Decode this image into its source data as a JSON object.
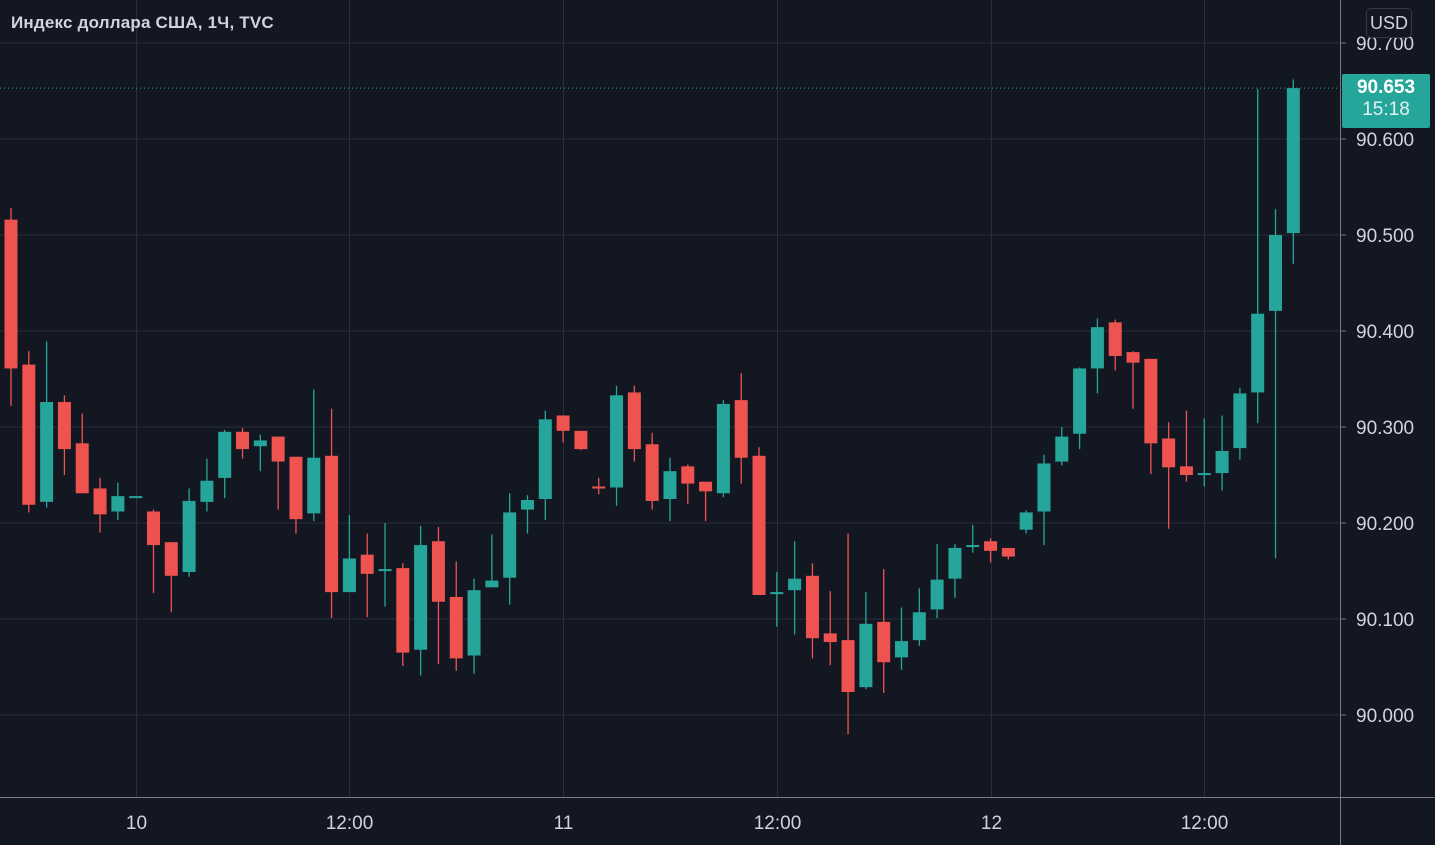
{
  "header": {
    "title": "Индекс доллара США, 1Ч, TVC",
    "currency": "USD"
  },
  "last": {
    "price": "90.653",
    "countdown": "15:18"
  },
  "colors": {
    "up": "#26a69a",
    "down": "#ef5350",
    "background": "#131722",
    "grid": "#2a2e39"
  },
  "chart_data": {
    "type": "candlestick",
    "title": "Индекс доллара США, 1Ч, TVC",
    "ylabel": "USD",
    "ylim": [
      89.92,
      90.73
    ],
    "y_ticks": [
      "90.700",
      "90.600",
      "90.500",
      "90.400",
      "90.300",
      "90.200",
      "90.100",
      "90.000"
    ],
    "x_ticks": [
      {
        "label": "10",
        "bar": 7
      },
      {
        "label": "12:00",
        "bar": 19
      },
      {
        "label": "11",
        "bar": 31
      },
      {
        "label": "12:00",
        "bar": 43
      },
      {
        "label": "12",
        "bar": 55
      },
      {
        "label": "12:00",
        "bar": 67
      }
    ],
    "last_price": 90.653,
    "ohlc": [
      [
        90.516,
        90.528,
        90.322,
        90.361
      ],
      [
        90.365,
        90.379,
        90.211,
        90.219
      ],
      [
        90.222,
        90.389,
        90.216,
        90.326
      ],
      [
        90.326,
        90.333,
        90.25,
        90.277
      ],
      [
        90.283,
        90.314,
        90.231,
        90.231
      ],
      [
        90.236,
        90.247,
        90.19,
        90.209
      ],
      [
        90.212,
        90.242,
        90.203,
        90.228
      ],
      [
        90.228,
        90.228,
        90.228,
        90.228
      ],
      [
        90.212,
        90.214,
        90.127,
        90.177
      ],
      [
        90.18,
        90.18,
        90.107,
        90.145
      ],
      [
        90.149,
        90.236,
        90.144,
        90.223
      ],
      [
        90.222,
        90.267,
        90.212,
        90.244
      ],
      [
        90.247,
        90.297,
        90.226,
        90.295
      ],
      [
        90.295,
        90.299,
        90.267,
        90.277
      ],
      [
        90.28,
        90.292,
        90.254,
        90.286
      ],
      [
        90.29,
        90.29,
        90.214,
        90.264
      ],
      [
        90.269,
        90.269,
        90.189,
        90.204
      ],
      [
        90.21,
        90.339,
        90.202,
        90.268
      ],
      [
        90.27,
        90.319,
        90.101,
        90.128
      ],
      [
        90.128,
        90.208,
        90.128,
        90.163
      ],
      [
        90.167,
        90.189,
        90.102,
        90.147
      ],
      [
        90.151,
        90.2,
        90.113,
        90.152
      ],
      [
        90.153,
        90.158,
        90.051,
        90.065
      ],
      [
        90.068,
        90.197,
        90.041,
        90.177
      ],
      [
        90.181,
        90.196,
        90.053,
        90.118
      ],
      [
        90.123,
        90.16,
        90.046,
        90.059
      ],
      [
        90.062,
        90.142,
        90.043,
        90.13
      ],
      [
        90.133,
        90.188,
        90.133,
        90.14
      ],
      [
        90.143,
        90.231,
        90.115,
        90.211
      ],
      [
        90.214,
        90.229,
        90.189,
        90.224
      ],
      [
        90.225,
        90.317,
        90.203,
        90.308
      ],
      [
        90.312,
        90.312,
        90.284,
        90.296
      ],
      [
        90.296,
        90.296,
        90.276,
        90.277
      ],
      [
        90.238,
        90.247,
        90.23,
        90.237
      ],
      [
        90.237,
        90.343,
        90.218,
        90.333
      ],
      [
        90.336,
        90.343,
        90.264,
        90.277
      ],
      [
        90.282,
        90.294,
        90.214,
        90.223
      ],
      [
        90.225,
        90.268,
        90.202,
        90.254
      ],
      [
        90.259,
        90.261,
        90.22,
        90.241
      ],
      [
        90.243,
        90.243,
        90.202,
        90.233
      ],
      [
        90.231,
        90.328,
        90.227,
        90.324
      ],
      [
        90.328,
        90.356,
        90.241,
        90.268
      ],
      [
        90.27,
        90.279,
        90.125,
        90.125
      ],
      [
        90.128,
        90.149,
        90.092,
        90.128
      ],
      [
        90.13,
        90.181,
        90.084,
        90.142
      ],
      [
        90.145,
        90.158,
        90.059,
        90.08
      ],
      [
        90.085,
        90.129,
        90.052,
        90.076
      ],
      [
        90.078,
        90.189,
        89.98,
        90.024
      ],
      [
        90.029,
        90.128,
        90.027,
        90.095
      ],
      [
        90.097,
        90.152,
        90.023,
        90.055
      ],
      [
        90.06,
        90.112,
        90.047,
        90.077
      ],
      [
        90.078,
        90.132,
        90.072,
        90.107
      ],
      [
        90.11,
        90.178,
        90.101,
        90.141
      ],
      [
        90.142,
        90.178,
        90.122,
        90.174
      ],
      [
        90.177,
        90.198,
        90.169,
        90.177
      ],
      [
        90.181,
        90.184,
        90.159,
        90.171
      ],
      [
        90.174,
        90.174,
        90.162,
        90.165
      ],
      [
        90.193,
        90.213,
        90.189,
        90.211
      ],
      [
        90.212,
        90.271,
        90.177,
        90.262
      ],
      [
        90.264,
        90.3,
        90.26,
        90.29
      ],
      [
        90.293,
        90.362,
        90.277,
        90.361
      ],
      [
        90.361,
        90.413,
        90.335,
        90.404
      ],
      [
        90.409,
        90.412,
        90.359,
        90.374
      ],
      [
        90.378,
        90.379,
        90.319,
        90.367
      ],
      [
        90.371,
        90.371,
        90.251,
        90.283
      ],
      [
        90.288,
        90.305,
        90.194,
        90.258
      ],
      [
        90.259,
        90.317,
        90.243,
        90.25
      ],
      [
        90.252,
        90.309,
        90.238,
        90.252
      ],
      [
        90.252,
        90.312,
        90.234,
        90.275
      ],
      [
        90.278,
        90.341,
        90.266,
        90.335
      ],
      [
        90.336,
        90.652,
        90.304,
        90.418
      ],
      [
        90.421,
        90.527,
        90.163,
        90.5
      ],
      [
        90.502,
        90.662,
        90.47,
        90.653
      ]
    ]
  }
}
